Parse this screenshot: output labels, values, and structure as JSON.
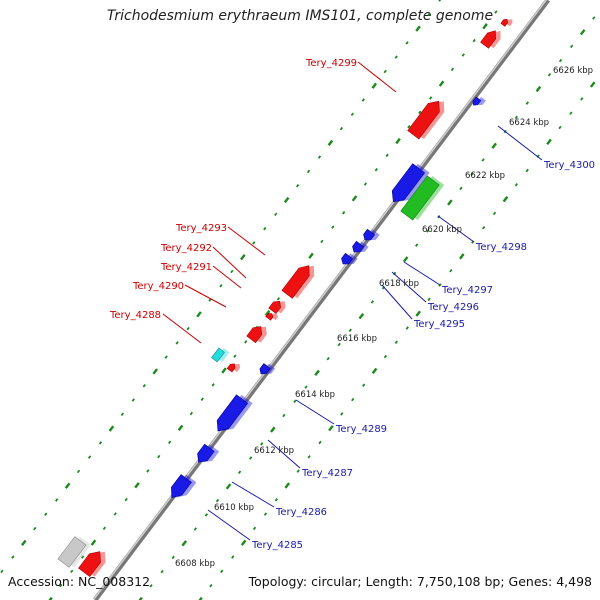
{
  "title": "Trichodesmium erythraeum IMS101, complete genome",
  "footer": {
    "accession": "Accession: NC_008312",
    "summary": "Topology: circular; Length: 7,750,108 bp; Genes: 4,498"
  },
  "colors": {
    "forward": "#ee1111",
    "reverse": "#1a1ae6",
    "green": "#22bb22",
    "cyan": "#22dddd",
    "gray": "#c8c8c8",
    "backbone": "#8a8a8a",
    "dots": "#1a8a1a",
    "label_red": "#cc0000",
    "label_blue": "#1a1aaa"
  },
  "kbp_ticks": [
    "6608 kbp",
    "6610 kbp",
    "6612 kbp",
    "6614 kbp",
    "6616 kbp",
    "6618 kbp",
    "6620 kbp",
    "6622 kbp",
    "6624 kbp",
    "6626 kbp"
  ],
  "labels_forward": [
    "Tery_4299",
    "Tery_4293",
    "Tery_4292",
    "Tery_4291",
    "Tery_4290",
    "Tery_4288"
  ],
  "labels_reverse": [
    "Tery_4300",
    "Tery_4298",
    "Tery_4297",
    "Tery_4296",
    "Tery_4295",
    "Tery_4289",
    "Tery_4287",
    "Tery_4286",
    "Tery_4285"
  ]
}
